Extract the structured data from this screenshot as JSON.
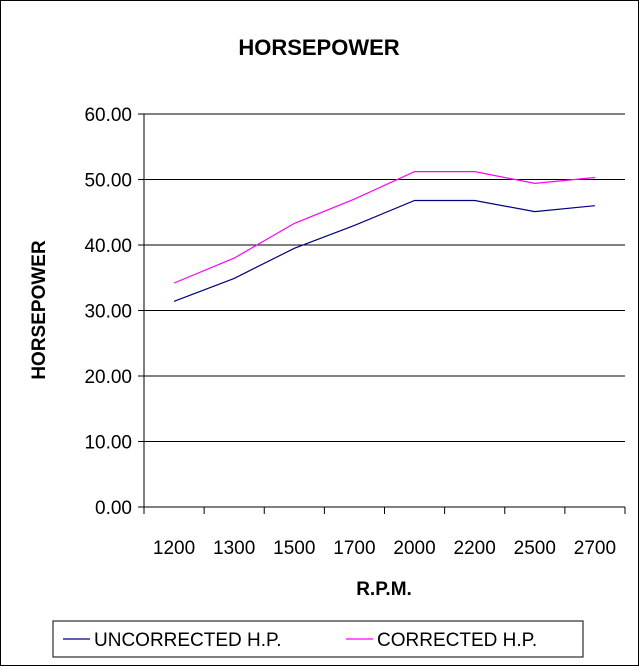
{
  "chart_data": {
    "type": "line",
    "title": "HORSEPOWER",
    "xlabel": "R.P.M.",
    "ylabel": "HORSEPOWER",
    "categories": [
      "1200",
      "1300",
      "1500",
      "1700",
      "2000",
      "2200",
      "2500",
      "2700"
    ],
    "y_tick_labels": [
      "0.00",
      "10.00",
      "20.00",
      "30.00",
      "40.00",
      "50.00",
      "60.00"
    ],
    "ylim": [
      0,
      60
    ],
    "y_tick_step": 10,
    "grid": "horizontal",
    "legend": "bottom",
    "series": [
      {
        "name": "UNCORRECTED H.P.",
        "color": "#000080",
        "values": [
          31.4,
          34.9,
          39.5,
          43.0,
          46.8,
          46.8,
          45.1,
          46.0
        ]
      },
      {
        "name": "CORRECTED H.P.",
        "color": "#ff00ff",
        "values": [
          34.2,
          38.0,
          43.3,
          47.0,
          51.2,
          51.2,
          49.4,
          50.3
        ]
      }
    ]
  }
}
